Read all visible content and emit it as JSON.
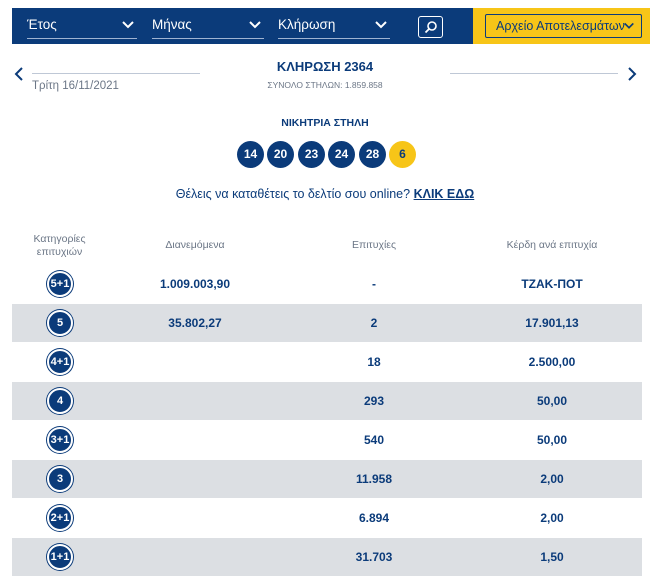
{
  "filters": {
    "year": "Έτος",
    "month": "Μήνας",
    "draw": "Κλήρωση",
    "archive": "Αρχείο Αποτελεσμάτων"
  },
  "draw": {
    "date": "Τρίτη 16/11/2021",
    "title": "ΚΛΗΡΩΣΗ 2364",
    "total_columns": "ΣΥΝΟΛΟ ΣΤΗΛΩΝ: 1.859.858"
  },
  "winning": {
    "label": "ΝΙΚΗΤΡΙΑ ΣΤΗΛΗ",
    "numbers": [
      "14",
      "20",
      "23",
      "24",
      "28"
    ],
    "joker": "6"
  },
  "cta": {
    "text": "Θέλεις να καταθέτεις το δελτίο σου online? ",
    "link": "ΚΛΙΚ ΕΔΩ"
  },
  "table": {
    "headers": {
      "category": "Κατηγορίες επιτυχιών",
      "distributed": "Διανεμόμενα",
      "winners": "Επιτυχίες",
      "prize": "Κέρδη ανά επιτυχία"
    },
    "rows": [
      {
        "category": "5+1",
        "distributed": "1.009.003,90",
        "winners": "-",
        "prize": "ΤΖΑΚ-ΠΟΤ"
      },
      {
        "category": "5",
        "distributed": "35.802,27",
        "winners": "2",
        "prize": "17.901,13"
      },
      {
        "category": "4+1",
        "distributed": "",
        "winners": "18",
        "prize": "2.500,00"
      },
      {
        "category": "4",
        "distributed": "",
        "winners": "293",
        "prize": "50,00"
      },
      {
        "category": "3+1",
        "distributed": "",
        "winners": "540",
        "prize": "50,00"
      },
      {
        "category": "3",
        "distributed": "",
        "winners": "11.958",
        "prize": "2,00"
      },
      {
        "category": "2+1",
        "distributed": "",
        "winners": "6.894",
        "prize": "2,00"
      },
      {
        "category": "1+1",
        "distributed": "",
        "winners": "31.703",
        "prize": "1,50"
      }
    ]
  },
  "colors": {
    "primary": "#0b3b7a",
    "accent": "#f7c518",
    "row_alt": "#dcdfe3"
  }
}
